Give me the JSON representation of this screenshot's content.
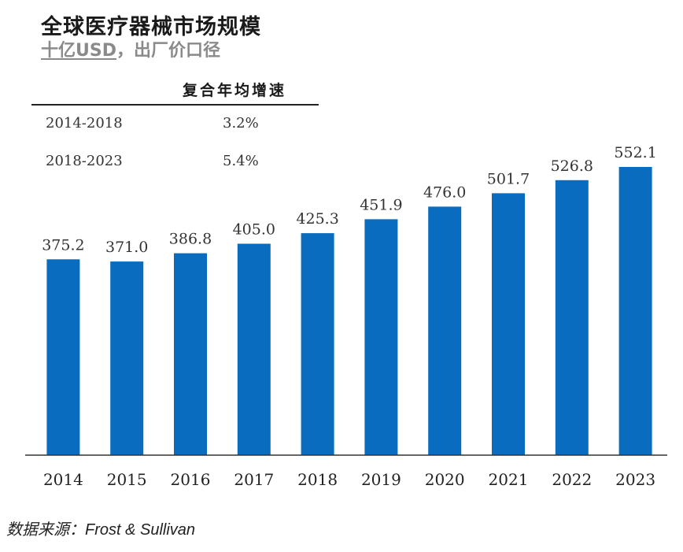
{
  "header": {
    "title": "全球医疗器械市场规模",
    "subtitle_unit": "十亿USD",
    "subtitle_rest": "，出厂价口径"
  },
  "cagr_table": {
    "header": "复合年均增速",
    "rows": [
      {
        "period": "2014-2018",
        "rate": "3.2%"
      },
      {
        "period": "2018-2023",
        "rate": "5.4%"
      }
    ]
  },
  "source": "数据来源：Frost & Sullivan",
  "colors": {
    "bar": "#0a6cbf",
    "axis": "#333333",
    "label": "#333333"
  },
  "chart_data": {
    "type": "bar",
    "title": "全球医疗器械市场规模",
    "categories": [
      "2014",
      "2015",
      "2016",
      "2017",
      "2018",
      "2019",
      "2020",
      "2021",
      "2022",
      "2023"
    ],
    "values": [
      375.2,
      371.0,
      386.8,
      405.0,
      425.3,
      451.9,
      476.0,
      501.7,
      526.8,
      552.1
    ],
    "value_labels": [
      "375.2",
      "371.0",
      "386.8",
      "405.0",
      "425.3",
      "451.9",
      "476.0",
      "501.7",
      "526.8",
      "552.1"
    ],
    "ylim": [
      0,
      552.1
    ],
    "grid": false,
    "legend": "none"
  }
}
